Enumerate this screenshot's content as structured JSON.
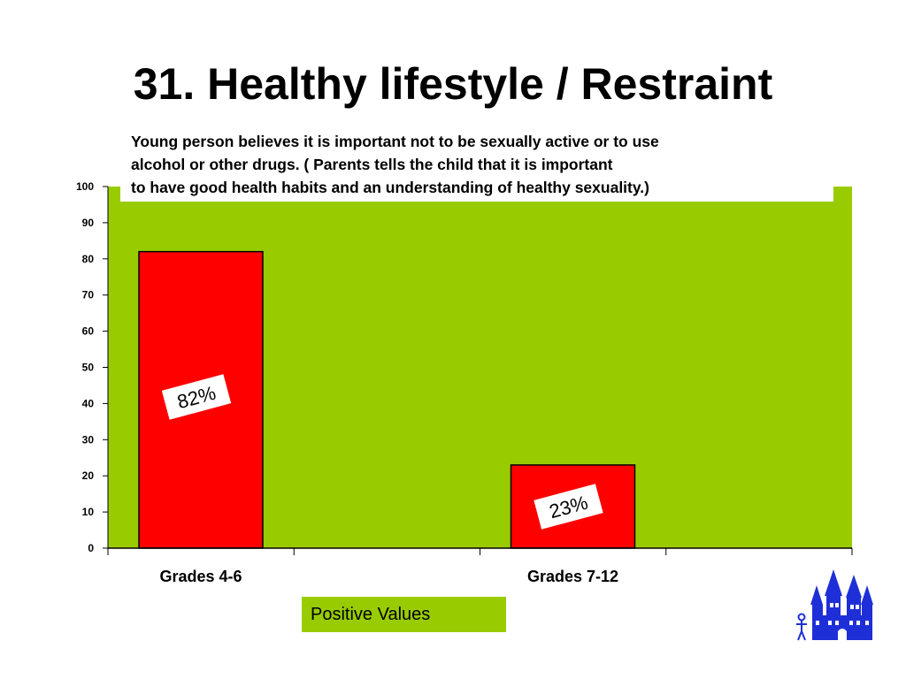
{
  "title": "31. Healthy lifestyle / Restraint",
  "description": [
    "Young person believes it is important not to be sexually active or to use",
    "alcohol or other drugs. ( Parents tells the child that it is important",
    "to have good health habits and an understanding of healthy sexuality.)"
  ],
  "legend": "Positive Values",
  "colors": {
    "plot_background": "#99cc00",
    "bar": "#ff0000",
    "logo": "#1f2fd8"
  },
  "chart_data": {
    "type": "bar",
    "categories": [
      "Grades 4-6",
      "Grades 7-12"
    ],
    "series": [
      {
        "name": "Positive Values",
        "values": [
          82,
          23
        ]
      }
    ],
    "data_labels": [
      "82%",
      "23%"
    ],
    "ylim": [
      0,
      100
    ],
    "yticks": [
      "0",
      "10",
      "20",
      "30",
      "40",
      "50",
      "60",
      "70",
      "80",
      "90",
      "100"
    ],
    "xlabel": "",
    "ylabel": "",
    "grid": false,
    "legend_position": "bottom"
  }
}
